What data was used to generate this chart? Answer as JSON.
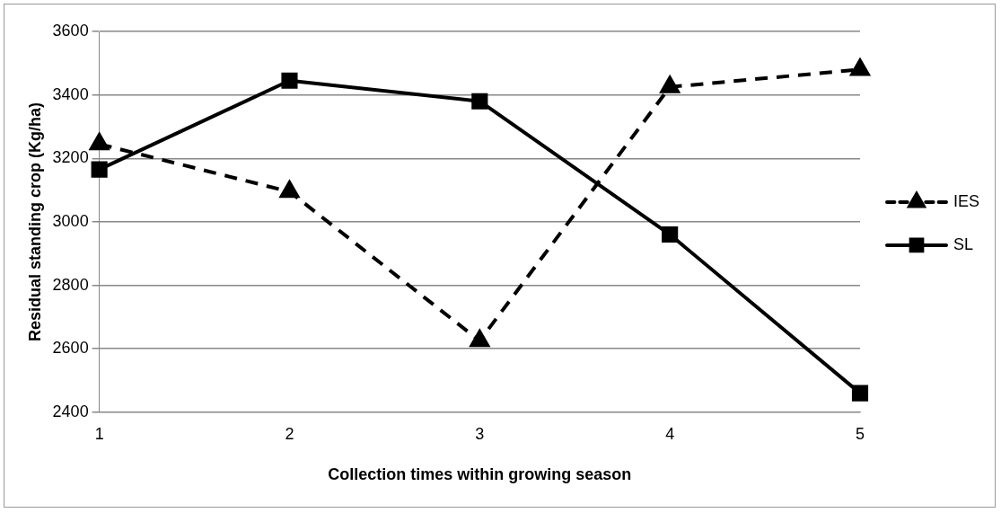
{
  "chart_data": {
    "type": "line",
    "xlabel": "Collection times within growing season",
    "ylabel": "Residual standing crop (Kg/ha)",
    "categories": [
      "1",
      "2",
      "3",
      "4",
      "5"
    ],
    "series": [
      {
        "name": "IES",
        "color": "#000000",
        "values": [
          3245,
          3095,
          2625,
          3425,
          3480
        ],
        "marker": "triangle",
        "line_style": "dashed"
      },
      {
        "name": "SL",
        "color": "#000000",
        "values": [
          3165,
          3445,
          3380,
          2960,
          2460
        ],
        "marker": "square",
        "line_style": "solid"
      }
    ],
    "ylim": [
      2400,
      3600
    ],
    "yticks": [
      2400,
      2600,
      2800,
      3000,
      3200,
      3400,
      3600
    ],
    "grid": "y",
    "legend": "right"
  }
}
